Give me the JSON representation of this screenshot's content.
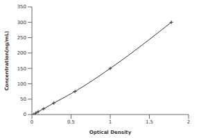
{
  "chart_data": {
    "type": "line",
    "x_label": "Optical Density",
    "y_label": "Concentration(ng/mL)",
    "x": [
      0.02,
      0.05,
      0.08,
      0.15,
      0.28,
      0.55,
      1.0,
      1.78
    ],
    "values": [
      0,
      4.69,
      9.38,
      18.75,
      37.5,
      75,
      150,
      300
    ],
    "color": "#333333",
    "marker": "plus",
    "xlim": [
      0,
      2
    ],
    "xticks": [
      0,
      0.5,
      1,
      1.5,
      2
    ],
    "ylim": [
      0,
      350
    ],
    "yticks": [
      0,
      50,
      100,
      150,
      200,
      250,
      300,
      350
    ],
    "grid": false
  }
}
